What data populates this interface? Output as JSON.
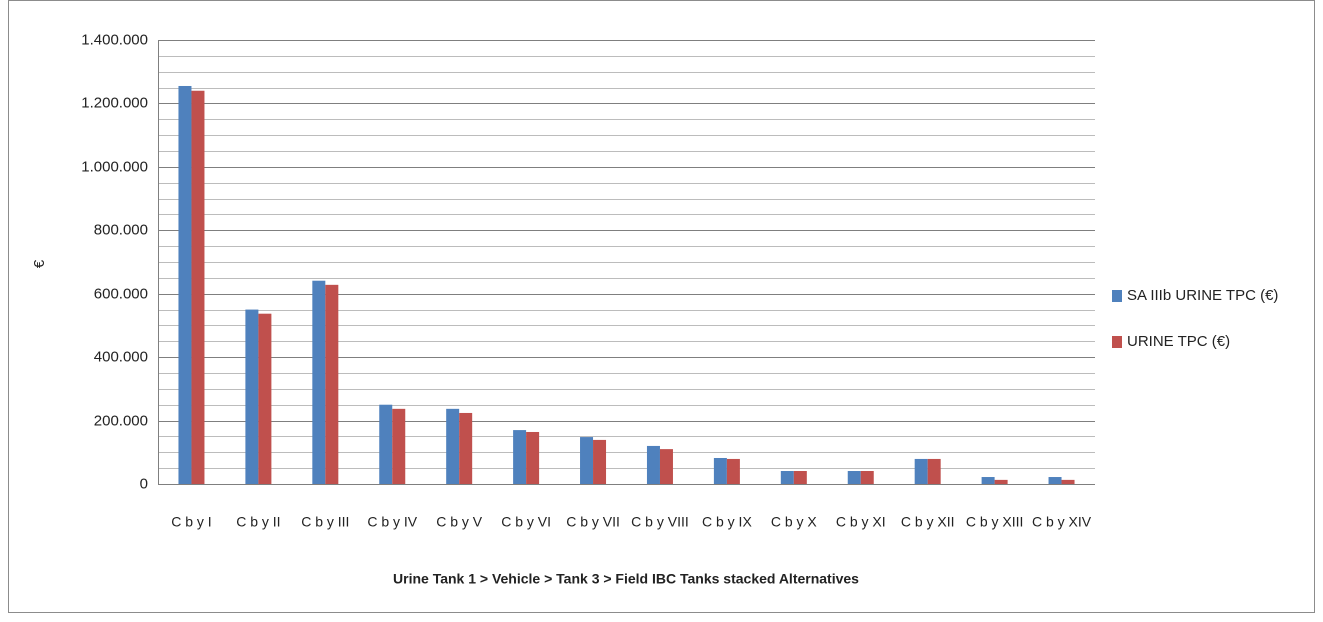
{
  "chart_data": {
    "type": "bar",
    "x_label": "Urine Tank 1 > Vehicle > Tank 3 > Field IBC Tanks stacked Alternatives",
    "y_label": "€",
    "categories": [
      "C b y I",
      "C b y II",
      "C b y III",
      "C b y IV",
      "C b y V",
      "C b y VI",
      "C b y VII",
      "C b y VIII",
      "C b y IX",
      "C b y X",
      "C b y XI",
      "C b y XII",
      "C b y XIII",
      "C b y XIV"
    ],
    "series": [
      {
        "name": "SA IIIb URINE TPC (€)",
        "color": "#4f81bd",
        "values": [
          1255000,
          550000,
          641000,
          250000,
          237000,
          170000,
          148000,
          120000,
          82000,
          41000,
          41000,
          79000,
          22000,
          22000
        ]
      },
      {
        "name": "URINE TPC (€)",
        "color": "#c0504d",
        "values": [
          1240000,
          537000,
          628000,
          237000,
          224000,
          164000,
          139000,
          110000,
          79000,
          41000,
          41000,
          79000,
          13000,
          13000
        ]
      }
    ],
    "ylim": [
      0,
      1400000
    ],
    "yticks": [
      0,
      {
        "value": 200000,
        "label": "200.000"
      },
      {
        "value": 400000,
        "label": "400.000"
      },
      {
        "value": 600000,
        "label": "600.000"
      },
      {
        "value": 800000,
        "label": "800.000"
      },
      {
        "value": 1000000,
        "label": "1.000.000"
      },
      {
        "value": 1200000,
        "label": "1.200.000"
      },
      {
        "value": 1400000,
        "label": "1.400.000"
      }
    ],
    "yminorticks": [
      50000,
      100000,
      150000,
      250000,
      300000,
      350000,
      450000,
      500000,
      550000,
      650000,
      700000,
      750000,
      850000,
      900000,
      950000,
      1050000,
      1100000,
      1150000,
      1250000,
      1300000,
      1350000
    ],
    "grid": true,
    "legend": "right"
  }
}
